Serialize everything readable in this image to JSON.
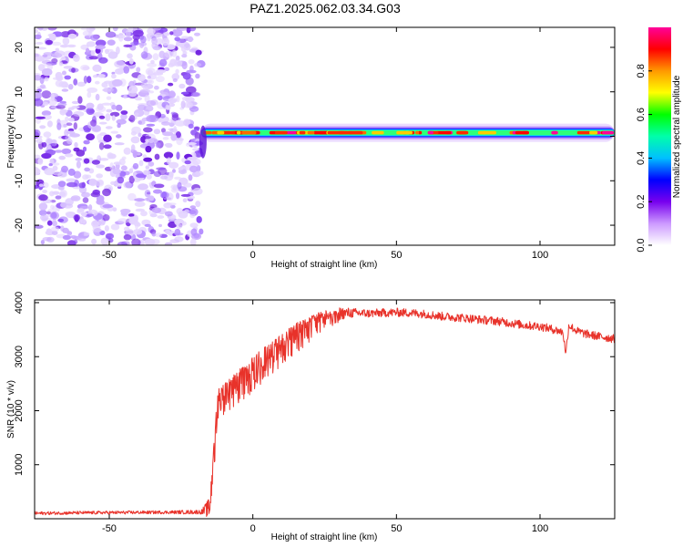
{
  "title": "PAZ1.2025.062.03.34.G03",
  "chart_data": [
    {
      "type": "heatmap",
      "xlabel": "Height of straight line (km)",
      "ylabel": "Frequency (Hz)",
      "xlim": [
        -76,
        126
      ],
      "ylim": [
        -24.5,
        24.5
      ],
      "x_ticks": [
        "-50",
        "0",
        "50",
        "100"
      ],
      "x_tick_values": [
        -50,
        0,
        50,
        100
      ],
      "y_ticks": [
        "20",
        "10",
        "0",
        "-10",
        "-20"
      ],
      "y_tick_values": [
        20,
        10,
        0,
        -10,
        -20
      ],
      "noise_region_x": [
        -76,
        -18
      ],
      "signal_region_x": [
        -18,
        126
      ],
      "signal_frequency_hz": 0.8,
      "signal_band_halfwidth_hz": 1.5,
      "colorbar": {
        "label": "Normalized spectral amplitude",
        "range": [
          0,
          1
        ],
        "ticks": [
          "0.0",
          "0.2",
          "0.4",
          "0.6",
          "0.8"
        ],
        "tick_values": [
          0,
          0.2,
          0.4,
          0.6,
          0.8
        ],
        "colors": [
          "#ffffff",
          "#cc99ff",
          "#7700ee",
          "#0000ff",
          "#00c0ff",
          "#00ffaa",
          "#00ff00",
          "#ffff00",
          "#ff9900",
          "#ff0000",
          "#ff0099"
        ]
      },
      "grid": false
    },
    {
      "type": "line",
      "xlabel": "Height of straight line (km)",
      "ylabel": "SNR (10 * v/v)",
      "xlim": [
        -76,
        126
      ],
      "ylim": [
        0,
        4050
      ],
      "x_ticks": [
        "-50",
        "0",
        "50",
        "100"
      ],
      "x_tick_values": [
        -50,
        0,
        50,
        100
      ],
      "y_ticks": [
        "4000",
        "3000",
        "2000",
        "1000"
      ],
      "y_tick_values": [
        4000,
        3000,
        2000,
        1000
      ],
      "series": [
        {
          "color": "#e8322a",
          "x": [
            -76,
            -60,
            -45,
            -30,
            -18,
            -15,
            -14,
            -13,
            -12,
            -10,
            -8,
            -5,
            -2,
            0,
            3,
            6,
            10,
            15,
            20,
            25,
            30,
            35,
            40,
            45,
            50,
            55,
            60,
            65,
            70,
            75,
            80,
            85,
            90,
            95,
            100,
            105,
            108,
            109,
            110,
            113,
            116,
            120,
            126
          ],
          "y": [
            100,
            110,
            115,
            120,
            125,
            200,
            900,
            1700,
            2200,
            2300,
            2400,
            2550,
            2700,
            2800,
            2950,
            3050,
            3250,
            3450,
            3600,
            3750,
            3800,
            3810,
            3800,
            3810,
            3820,
            3810,
            3790,
            3750,
            3730,
            3710,
            3680,
            3660,
            3620,
            3580,
            3560,
            3500,
            3450,
            3050,
            3580,
            3470,
            3420,
            3380,
            3330
          ],
          "noise_amplitude": [
            30,
            30,
            30,
            30,
            40,
            200,
            350,
            350,
            330,
            320,
            320,
            330,
            330,
            330,
            320,
            310,
            300,
            280,
            250,
            180,
            120,
            90,
            80,
            80,
            80,
            80,
            80,
            80,
            80,
            80,
            80,
            80,
            80,
            80,
            80,
            80,
            80,
            80,
            80,
            80,
            80,
            80,
            80
          ]
        }
      ],
      "grid": false
    }
  ]
}
